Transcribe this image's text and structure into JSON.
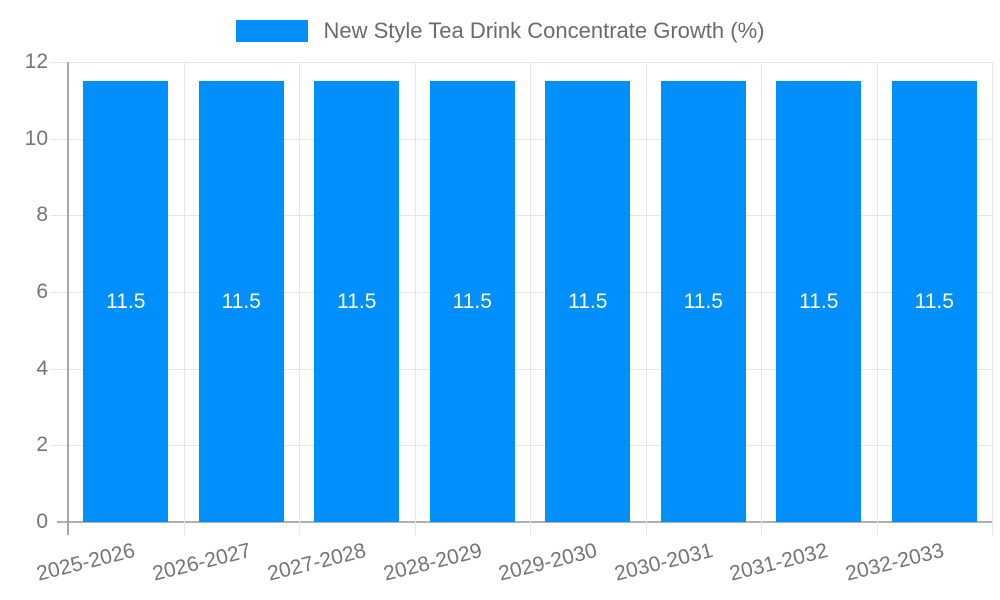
{
  "chart_data": {
    "type": "bar",
    "title": "",
    "legend": {
      "label": "New Style Tea Drink Concentrate Growth (%)",
      "position": "top-center",
      "marker": "rect"
    },
    "categories": [
      "2025-2026",
      "2026-2027",
      "2027-2028",
      "2028-2029",
      "2029-2030",
      "2030-2031",
      "2031-2032",
      "2032-2033"
    ],
    "series": [
      {
        "name": "New Style Tea Drink Concentrate Growth (%)",
        "values": [
          11.5,
          11.5,
          11.5,
          11.5,
          11.5,
          11.5,
          11.5,
          11.5
        ]
      }
    ],
    "bar_value_labels": [
      "11.5",
      "11.5",
      "11.5",
      "11.5",
      "11.5",
      "11.5",
      "11.5",
      "11.5"
    ],
    "xlabel": "",
    "ylabel": "",
    "ylim": [
      0,
      12
    ],
    "yticks": [
      0,
      2,
      4,
      6,
      8,
      10,
      12
    ],
    "grid": {
      "horizontal": true,
      "vertical": true
    },
    "colors": {
      "bar": "#008FFB",
      "gridline": "#e6e6e6",
      "axis_line": "#a8a8a8",
      "tick_label": "#757575",
      "legend_text": "#6b6b6b",
      "bar_label": "#ffffff",
      "background": "#ffffff"
    }
  }
}
